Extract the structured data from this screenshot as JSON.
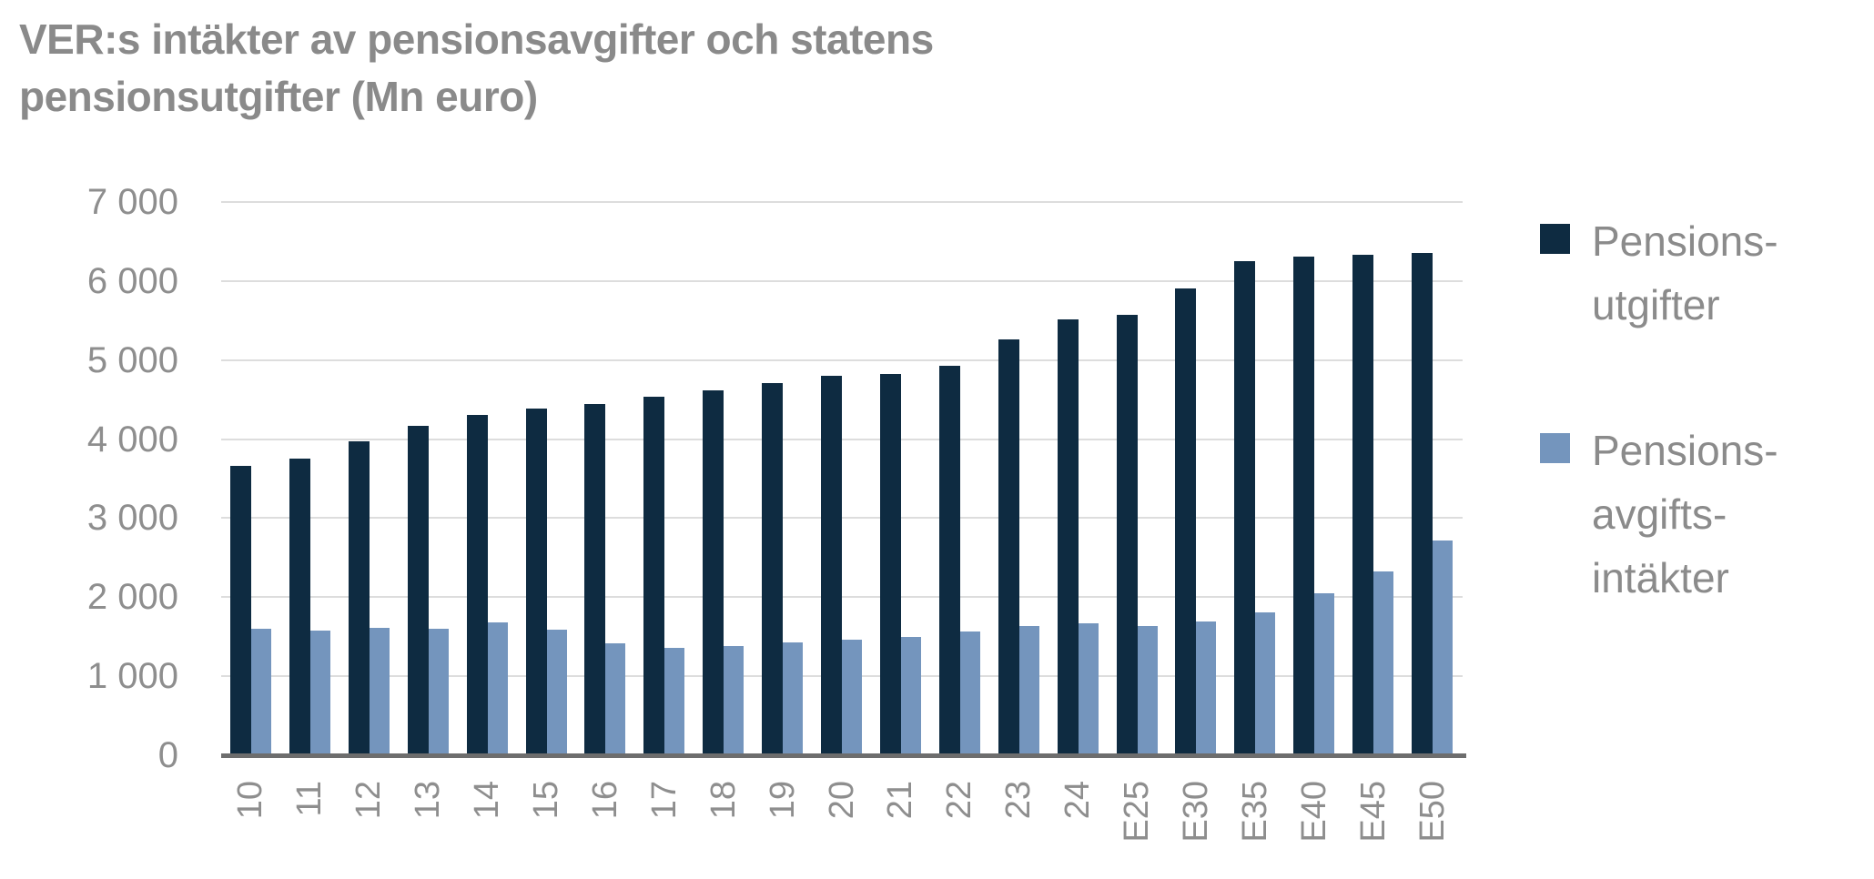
{
  "title": "VER:s intäkter av pensionsavgifter och statens pensionsutgifter (Mn euro)",
  "title_lines": [
    "VER:s intäkter av pensionsavgifter och statens",
    "pensionsutgifter (Mn euro)"
  ],
  "colors": {
    "series_dark": "#0e2b41",
    "series_light": "#7495bd",
    "gridline": "#dddddd",
    "axis_line": "#6d6d6d",
    "text_gray": "#8e8e8e",
    "title_gray": "#8a8a8a",
    "background": "#ffffff"
  },
  "chart_data": {
    "type": "bar",
    "title": "VER:s intäkter av pensionsavgifter och statens pensionsutgifter (Mn euro)",
    "xlabel": "",
    "ylabel": "",
    "ylim": [
      0,
      7000
    ],
    "ytick_step": 1000,
    "ytick_labels": [
      "0",
      "1 000",
      "2 000",
      "3 000",
      "4 000",
      "5 000",
      "6 000",
      "7 000"
    ],
    "grid": "horizontal",
    "legend_position": "right",
    "categories": [
      "10",
      "11",
      "12",
      "13",
      "14",
      "15",
      "16",
      "17",
      "18",
      "19",
      "20",
      "21",
      "22",
      "23",
      "24",
      "E25",
      "E30",
      "E35",
      "E40",
      "E45",
      "E50"
    ],
    "series": [
      {
        "name": "Pensionsutgifter",
        "legend_lines": [
          "Pensions-",
          "utgifter"
        ],
        "color": "#0e2b41",
        "values": [
          3680,
          3780,
          4000,
          4190,
          4330,
          4410,
          4470,
          4560,
          4640,
          4730,
          4820,
          4850,
          4950,
          5290,
          5540,
          5600,
          5930,
          6270,
          6330,
          6350,
          6380
        ]
      },
      {
        "name": "Pensionsavgiftsintäkter",
        "legend_lines": [
          "Pensions-",
          "avgifts-",
          "intäkter"
        ],
        "color": "#7495bd",
        "values": [
          1620,
          1600,
          1630,
          1620,
          1700,
          1610,
          1440,
          1380,
          1400,
          1450,
          1490,
          1520,
          1590,
          1660,
          1690,
          1660,
          1710,
          1830,
          2070,
          2350,
          2740
        ]
      }
    ]
  }
}
